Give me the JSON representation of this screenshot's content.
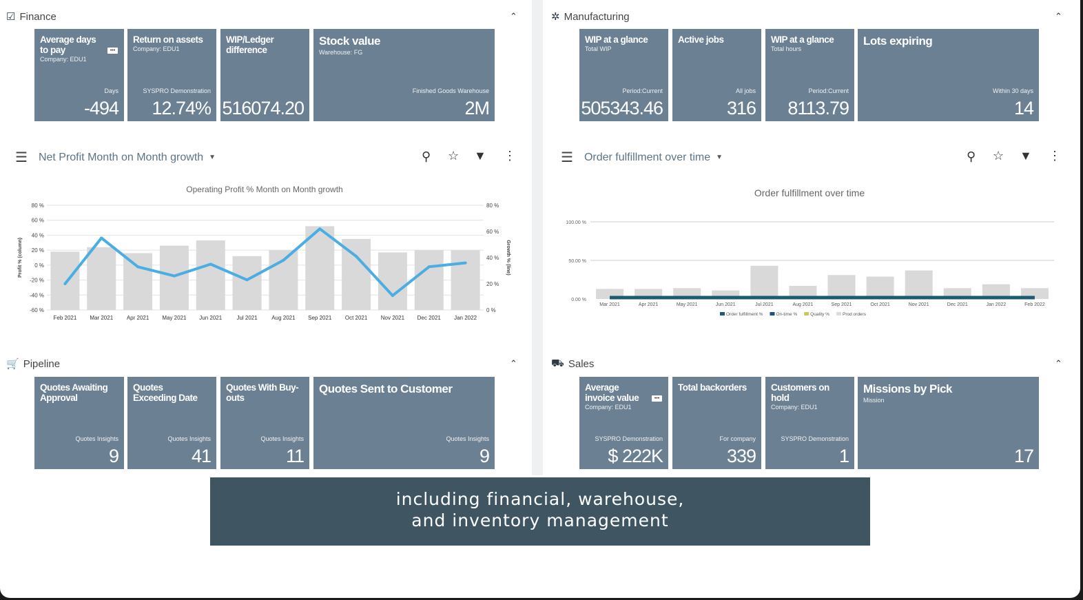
{
  "finance": {
    "title": "Finance",
    "icon": "clipboard-check-icon",
    "tiles": [
      {
        "title": "Average days to pay",
        "sub": "Company: EDU1",
        "foot": "Days",
        "value": "-494",
        "more": true
      },
      {
        "title": "Return on assets",
        "sub": "Company: EDU1",
        "foot": "SYSPRO Demonstration",
        "value": "12.74%"
      },
      {
        "title": "WIP/Ledger difference",
        "sub": "",
        "foot": "",
        "value": "516074.20"
      },
      {
        "title": "Stock value",
        "sub": "Warehouse: FG",
        "foot": "Finished Goods Warehouse",
        "value": "2M",
        "wide": true
      }
    ]
  },
  "manufacturing": {
    "title": "Manufacturing",
    "icon": "gear-icon",
    "tiles": [
      {
        "title": "WIP at a glance",
        "sub": "Total WIP",
        "foot": "Period:Current",
        "value": "505343.46"
      },
      {
        "title": "Active jobs",
        "sub": "",
        "foot": "All jobs",
        "value": "316"
      },
      {
        "title": "WIP at a glance",
        "sub": "Total hours",
        "foot": "Period:Current",
        "value": "8113.79"
      },
      {
        "title": "Lots expiring",
        "sub": "",
        "foot": "Within 30 days",
        "value": "14",
        "wide": true
      }
    ]
  },
  "pipeline": {
    "title": "Pipeline",
    "icon": "cart-icon",
    "tiles": [
      {
        "title": "Quotes Awaiting Approval",
        "sub": "",
        "foot": "Quotes Insights",
        "value": "9"
      },
      {
        "title": "Quotes Exceeding Date",
        "sub": "",
        "foot": "Quotes Insights",
        "value": "41"
      },
      {
        "title": "Quotes With Buy-outs",
        "sub": "",
        "foot": "Quotes Insights",
        "value": "11"
      },
      {
        "title": "Quotes Sent to Customer",
        "sub": "",
        "foot": "Quotes Insights",
        "value": "9",
        "wide": true
      }
    ]
  },
  "sales": {
    "title": "Sales",
    "icon": "truck-icon",
    "tiles": [
      {
        "title": "Average invoice value",
        "sub": "Company: EDU1",
        "foot": "SYSPRO Demonstration",
        "value": "$ 222K",
        "more": true
      },
      {
        "title": "Total backorders",
        "sub": "",
        "foot": "For company",
        "value": "339"
      },
      {
        "title": "Customers on hold",
        "sub": "Company: EDU1",
        "foot": "SYSPRO Demonstration",
        "value": "1"
      },
      {
        "title": "Missions by Pick",
        "sub": "Mission",
        "foot": "",
        "value": "17",
        "wide": true
      }
    ]
  },
  "left_widget": {
    "selector": "Net Profit Month on Month growth"
  },
  "right_widget": {
    "selector": "Order fulfillment over time"
  },
  "caption": {
    "line1": "including financial, warehouse,",
    "line2": "and inventory management"
  },
  "colors": {
    "tile": "#6b8092",
    "bar": "#d9d9d9",
    "line": "#4aaee3",
    "fulfillment": "#1f5a73",
    "caption": "#3f5562"
  },
  "chart_data": [
    {
      "type": "bar+line",
      "title": "Operating Profit % Month on Month growth",
      "categories": [
        "Feb 2021",
        "Mar 2021",
        "Apr 2021",
        "May 2021",
        "Jun 2021",
        "Jul 2021",
        "Aug 2021",
        "Sep 2021",
        "Oct 2021",
        "Nov 2021",
        "Dec 2021",
        "Jan 2022"
      ],
      "ylabel": "Profit % (column)",
      "y2label": "Growth % (line)",
      "ylim": [
        -60,
        80
      ],
      "yticks": [
        "80 %",
        "60 %",
        "40 %",
        "20 %",
        "0 %",
        "-20 %",
        "-40 %",
        "-60 %"
      ],
      "y2lim": [
        0,
        80
      ],
      "y2ticks": [
        "80 %",
        "60 %",
        "40 %",
        "20 %",
        "0 %"
      ],
      "series": [
        {
          "kind": "bar",
          "values": [
            18,
            24,
            16,
            26,
            33,
            12,
            20,
            52,
            35,
            17,
            20,
            20
          ]
        },
        {
          "kind": "line",
          "values": [
            20,
            55,
            33,
            26,
            35,
            23,
            38,
            62,
            41,
            11,
            33,
            36
          ]
        }
      ],
      "grid": true
    },
    {
      "type": "bar",
      "title": "Order fulfillment over time",
      "categories": [
        "Mar 2021",
        "Apr 2021",
        "May 2021",
        "Jun 2021",
        "Jul 2021",
        "Aug 2021",
        "Sep 2021",
        "Oct 2021",
        "Nov 2021",
        "Dec 2021",
        "Jan 2022",
        "Feb 2022"
      ],
      "ylim": [
        0,
        100
      ],
      "yticks": [
        "100.00 %",
        "50.00 %",
        "0.00 %"
      ],
      "legend": [
        "Order fulfillment %",
        "On-time %",
        "Quality %",
        "Prod orders"
      ],
      "series": [
        {
          "name": "Prod orders",
          "values": [
            13,
            13,
            14,
            11,
            43,
            17,
            31,
            29,
            37,
            14,
            19,
            14
          ]
        },
        {
          "name": "Order fulfillment %",
          "values": [
            0,
            0,
            0,
            0,
            0,
            0,
            0,
            0,
            0,
            0,
            0,
            0
          ]
        }
      ],
      "grid": true,
      "legend_position": "bottom"
    }
  ]
}
